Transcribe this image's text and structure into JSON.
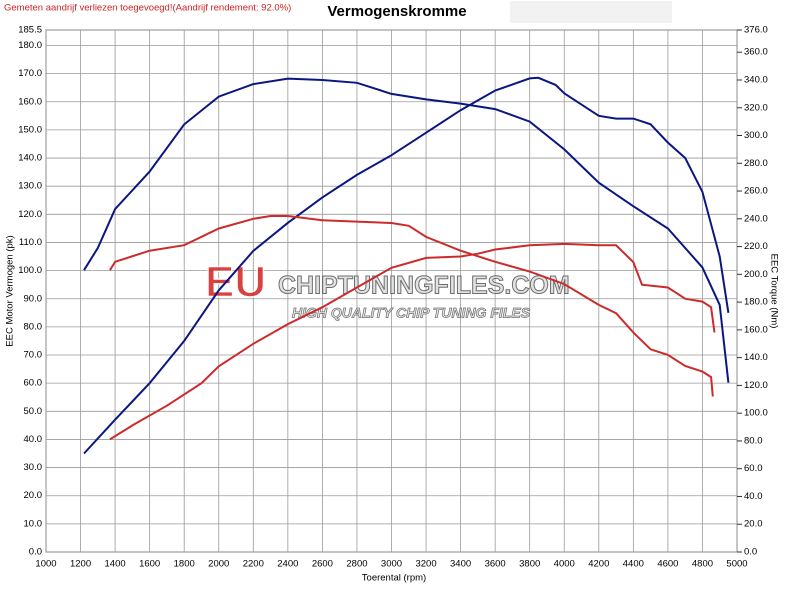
{
  "notice": "Gemeten aandrijf verliezen toegevoegd!(Aandrijf rendement: 92.0%)",
  "watermark": {
    "brand_prefix": "EU",
    "brand": "CHIPTUNINGFILES.COM",
    "tagline": "HIGH QUALITY CHIP TUNING FILES"
  },
  "chart_data": {
    "type": "line",
    "title": "Vermogenskromme",
    "x_label": "Toerental (rpm)",
    "y_label": "EEC Motor Vermogen (pk)",
    "y2_label": "EEC Torque (Nm)",
    "xlim": [
      1000,
      5000
    ],
    "xticks": [
      1000,
      1200,
      1400,
      1600,
      1800,
      2000,
      2200,
      2400,
      2600,
      2800,
      3000,
      3200,
      3400,
      3600,
      3800,
      4000,
      4200,
      4400,
      4600,
      4800,
      5000
    ],
    "ylim": [
      0,
      185.5
    ],
    "yticks": [
      {
        "value": 0,
        "label": "0.0"
      },
      {
        "value": 10,
        "label": "10.0"
      },
      {
        "value": 20,
        "label": "20.0"
      },
      {
        "value": 30,
        "label": "30.0"
      },
      {
        "value": 40,
        "label": "40.0"
      },
      {
        "value": 50,
        "label": "50.0"
      },
      {
        "value": 60,
        "label": "60.0"
      },
      {
        "value": 70,
        "label": "70.0"
      },
      {
        "value": 80,
        "label": "80.0"
      },
      {
        "value": 90,
        "label": "90.0"
      },
      {
        "value": 100,
        "label": "100.0"
      },
      {
        "value": 110,
        "label": "110.0"
      },
      {
        "value": 120,
        "label": "120.0"
      },
      {
        "value": 130,
        "label": "130.0"
      },
      {
        "value": 140,
        "label": "140.0"
      },
      {
        "value": 150,
        "label": "150.0"
      },
      {
        "value": 160,
        "label": "160.0"
      },
      {
        "value": 170,
        "label": "170.0"
      },
      {
        "value": 180,
        "label": "180.0"
      },
      185.5
    ],
    "y2lim": [
      0,
      376
    ],
    "y2ticks": [
      {
        "value": 0,
        "label": "0.0"
      },
      {
        "value": 20,
        "label": "20.0"
      },
      {
        "value": 40,
        "label": "40.0"
      },
      {
        "value": 60,
        "label": "60.0"
      },
      {
        "value": 80,
        "label": "80.0"
      },
      {
        "value": 100,
        "label": "100.0"
      },
      {
        "value": 120,
        "label": "120.0"
      },
      {
        "value": 140,
        "label": "140.0"
      },
      {
        "value": 160,
        "label": "160.0"
      },
      {
        "value": 180,
        "label": "180.0"
      },
      {
        "value": 200,
        "label": "200.0"
      },
      {
        "value": 220,
        "label": "220.0"
      },
      {
        "value": 240,
        "label": "240.0"
      },
      {
        "value": 260,
        "label": "260.0"
      },
      {
        "value": 280,
        "label": "280.0"
      },
      {
        "value": 300,
        "label": "300.0"
      },
      {
        "value": 320,
        "label": "320.0"
      },
      {
        "value": 340,
        "label": "340.0"
      },
      {
        "value": 360,
        "label": "360.0"
      },
      {
        "value": 376,
        "label": "376.0"
      }
    ],
    "grid": true,
    "series": [
      {
        "color": "#0b1780",
        "axis": "y",
        "x": [
          1220,
          1400,
          1600,
          1800,
          2000,
          2200,
          2400,
          2600,
          2800,
          3000,
          3200,
          3400,
          3600,
          3800,
          3850,
          3950,
          4000,
          4100,
          4200,
          4300,
          4400,
          4500,
          4600,
          4700,
          4800,
          4900,
          4950
        ],
        "values": [
          35,
          47,
          60,
          75,
          93,
          107,
          117,
          126,
          134,
          141,
          149,
          157,
          164,
          168.3,
          168.5,
          166,
          163,
          159,
          155,
          154,
          154,
          152,
          145.5,
          140,
          128,
          105,
          85
        ]
      },
      {
        "color": "#0b1780",
        "axis": "y2",
        "x": [
          1220,
          1300,
          1400,
          1600,
          1800,
          2000,
          2200,
          2400,
          2600,
          2800,
          3000,
          3200,
          3400,
          3600,
          3800,
          4000,
          4200,
          4400,
          4600,
          4800,
          4900,
          4950
        ],
        "values": [
          203,
          219,
          247,
          274,
          308,
          328,
          337,
          341,
          340,
          338,
          330,
          326,
          323,
          319,
          310,
          290,
          266,
          249,
          233,
          205,
          178,
          122
        ]
      },
      {
        "color": "#cc2b2b",
        "axis": "y",
        "x": [
          1370,
          1500,
          1700,
          1900,
          2000,
          2200,
          2400,
          2600,
          2800,
          3000,
          3200,
          3400,
          3500,
          3600,
          3800,
          4000,
          4200,
          4300,
          4400,
          4450,
          4600,
          4700,
          4800,
          4850,
          4870
        ],
        "values": [
          40,
          45,
          52,
          60,
          66,
          74,
          81,
          87,
          94,
          101,
          104.5,
          105,
          106,
          107.5,
          109,
          109.5,
          109,
          109,
          103,
          95,
          94,
          90,
          89,
          87,
          78
        ]
      },
      {
        "color": "#cc2b2b",
        "axis": "y2",
        "x": [
          1370,
          1400,
          1600,
          1800,
          2000,
          2200,
          2300,
          2400,
          2600,
          2800,
          3000,
          3100,
          3200,
          3400,
          3600,
          3800,
          4000,
          4200,
          4300,
          4400,
          4500,
          4600,
          4700,
          4800,
          4850,
          4860
        ],
        "values": [
          203,
          209,
          217,
          221,
          233,
          240,
          242,
          242,
          239,
          238,
          237,
          235,
          227,
          217,
          209,
          202,
          193,
          178,
          172,
          158,
          146,
          142,
          134,
          130,
          126,
          112
        ]
      }
    ]
  }
}
